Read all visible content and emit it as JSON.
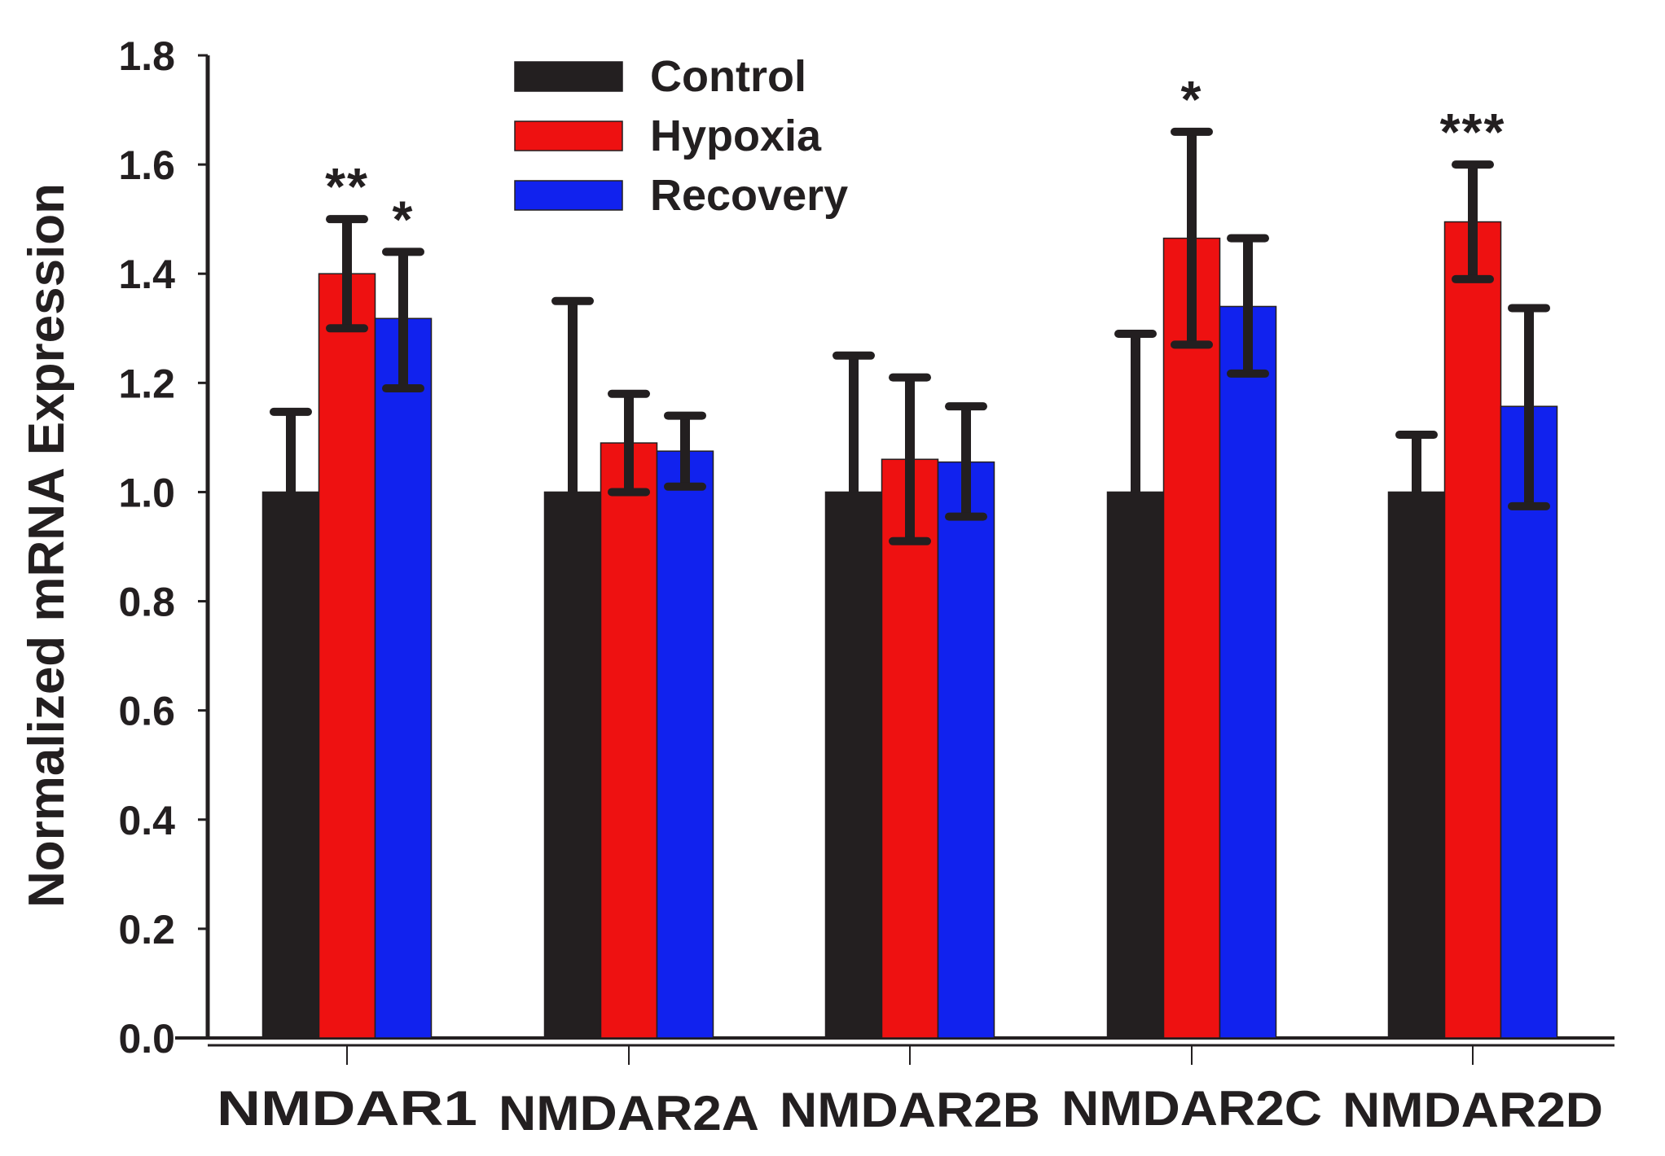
{
  "chart_data": {
    "type": "bar",
    "title": "",
    "xlabel": "",
    "ylabel": "Normalized mRNA Expression",
    "ylim": [
      0,
      1.8
    ],
    "yticks": [
      "0.0",
      "0.2",
      "0.4",
      "0.6",
      "0.8",
      "1.0",
      "1.2",
      "1.4",
      "1.6",
      "1.8"
    ],
    "grid": false,
    "legend_position": "top-center",
    "categories": [
      "NMDAR1",
      "NMDAR2A",
      "NMDAR2B",
      "NMDAR2C",
      "NMDAR2D"
    ],
    "series": [
      {
        "name": "Control",
        "color": "#231f20",
        "values": [
          1.0,
          1.0,
          1.0,
          1.0,
          1.0
        ],
        "error_upper": [
          1.147,
          1.35,
          1.25,
          1.29,
          1.105
        ],
        "error_lower": [
          null,
          null,
          null,
          null,
          null
        ]
      },
      {
        "name": "Hypoxia",
        "color": "#ee1111",
        "values": [
          1.4,
          1.09,
          1.06,
          1.465,
          1.495
        ],
        "error_upper": [
          1.5,
          1.18,
          1.21,
          1.66,
          1.6
        ],
        "error_lower": [
          1.3,
          1.0,
          0.91,
          1.27,
          1.39
        ]
      },
      {
        "name": "Recovery",
        "color": "#1122ee",
        "values": [
          1.318,
          1.075,
          1.055,
          1.34,
          1.157
        ],
        "error_upper": [
          1.44,
          1.14,
          1.157,
          1.465,
          1.337
        ],
        "error_lower": [
          1.19,
          1.01,
          0.955,
          1.217,
          0.974
        ]
      }
    ],
    "annotations": [
      {
        "category": "NMDAR1",
        "series": "Hypoxia",
        "text": "**"
      },
      {
        "category": "NMDAR1",
        "series": "Recovery",
        "text": "*"
      },
      {
        "category": "NMDAR2C",
        "series": "Hypoxia",
        "text": "*"
      },
      {
        "category": "NMDAR2D",
        "series": "Hypoxia",
        "text": "***"
      }
    ]
  }
}
